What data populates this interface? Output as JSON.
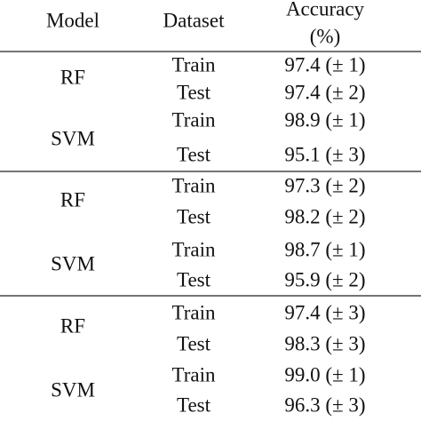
{
  "table": {
    "header": {
      "model": "Model",
      "dataset": "Dataset",
      "accuracy": [
        "Accuracy",
        "(%)"
      ]
    },
    "groups": [
      {
        "models": [
          {
            "name": "RF",
            "rows": [
              {
                "dataset": "Train",
                "accuracy": "97.4 (± 1)"
              },
              {
                "dataset": "Test",
                "accuracy": "97.4 (± 2)"
              }
            ]
          },
          {
            "name": "SVM",
            "rows": [
              {
                "dataset": "Train",
                "accuracy": "98.9 (± 1)"
              },
              {
                "dataset": "Test",
                "accuracy": "95.1 (± 3)"
              }
            ]
          }
        ]
      },
      {
        "models": [
          {
            "name": "RF",
            "rows": [
              {
                "dataset": "Train",
                "accuracy": "97.3 (± 2)"
              },
              {
                "dataset": "Test",
                "accuracy": "98.2 (± 2)"
              }
            ]
          },
          {
            "name": "SVM",
            "rows": [
              {
                "dataset": "Train",
                "accuracy": "98.7 (± 1)"
              },
              {
                "dataset": "Test",
                "accuracy": "95.9 (± 2)"
              }
            ]
          }
        ]
      },
      {
        "models": [
          {
            "name": "RF",
            "rows": [
              {
                "dataset": "Train",
                "accuracy": "97.4 (± 3)"
              },
              {
                "dataset": "Test",
                "accuracy": "98.3 (± 3)"
              }
            ]
          },
          {
            "name": "SVM",
            "rows": [
              {
                "dataset": "Train",
                "accuracy": "99.0 (± 1)"
              },
              {
                "dataset": "Test",
                "accuracy": "96.3 (± 3)"
              }
            ]
          }
        ]
      }
    ]
  }
}
